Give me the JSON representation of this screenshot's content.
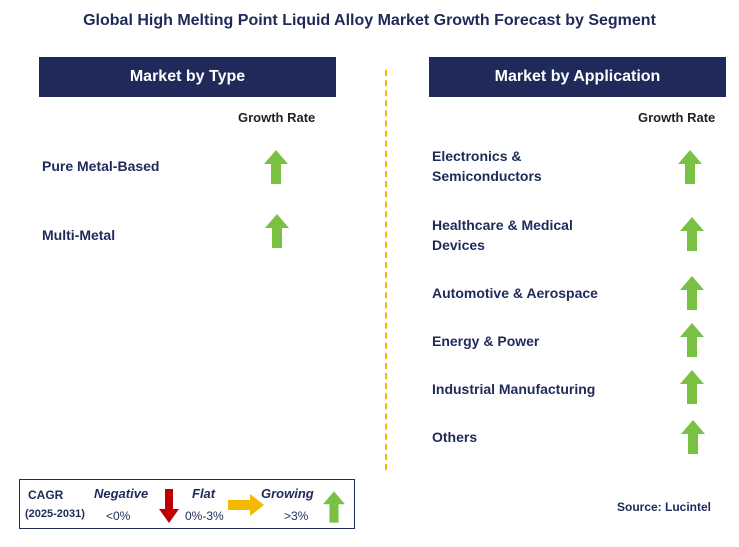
{
  "title": "Global High Melting Point Liquid Alloy Market Growth Forecast by Segment",
  "left_panel": {
    "header": "Market by Type",
    "growth_rate_label": "Growth Rate",
    "items": [
      {
        "label": "Pure Metal-Based",
        "trend": "growing"
      },
      {
        "label": "Multi-Metal",
        "trend": "growing"
      }
    ]
  },
  "right_panel": {
    "header": "Market by Application",
    "growth_rate_label": "Growth Rate",
    "items": [
      {
        "label_line1": "Electronics &",
        "label_line2": "Semiconductors",
        "trend": "growing"
      },
      {
        "label_line1": "Healthcare & Medical",
        "label_line2": "Devices",
        "trend": "growing"
      },
      {
        "label_line1": "Automotive & Aerospace",
        "label_line2": "",
        "trend": "growing"
      },
      {
        "label_line1": "Energy & Power",
        "label_line2": "",
        "trend": "growing"
      },
      {
        "label_line1": "Industrial Manufacturing",
        "label_line2": "",
        "trend": "growing"
      },
      {
        "label_line1": "Others",
        "label_line2": "",
        "trend": "growing"
      }
    ]
  },
  "legend": {
    "cagr_label": "CAGR",
    "period": "(2025-2031)",
    "negative_label": "Negative",
    "negative_range": "<0%",
    "flat_label": "Flat",
    "flat_range": "0%-3%",
    "growing_label": "Growing",
    "growing_range": ">3%"
  },
  "source": "Source: Lucintel",
  "colors": {
    "navy": "#1f2a5a",
    "growing_arrow": "#7ac143",
    "negative_arrow": "#c00000",
    "flat_arrow": "#f5b800",
    "divider": "#f5b800"
  }
}
